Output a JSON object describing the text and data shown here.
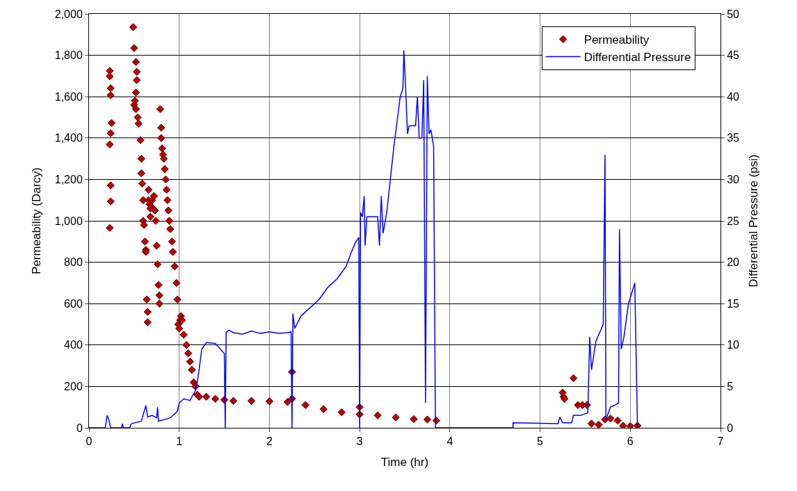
{
  "chart_data": {
    "type": "scatter",
    "xlabel": "Time (hr)",
    "ylabel": "Permeability (Darcy)",
    "y2label": "Differential Pressure (psi)",
    "xlim": [
      0,
      7
    ],
    "xticks": [
      0,
      1,
      2,
      3,
      4,
      5,
      6,
      7
    ],
    "ylim": [
      0,
      2000
    ],
    "yticks": [
      0,
      200,
      400,
      600,
      800,
      {
        "value": 1000,
        "label": "1,000"
      },
      {
        "value": 1200,
        "label": "1,200"
      },
      {
        "value": 1400,
        "label": "1,400"
      },
      {
        "value": 1600,
        "label": "1,600"
      },
      {
        "value": 1800,
        "label": "1,800"
      },
      {
        "value": 2000,
        "label": "2,000"
      }
    ],
    "y2lim": [
      0,
      50
    ],
    "y2ticks": [
      0,
      5,
      10,
      15,
      20,
      25,
      30,
      35,
      40,
      45,
      50
    ],
    "grid": true,
    "legend": "top right",
    "series": [
      {
        "name": "Permeability",
        "marker": "diamond",
        "color": "#c00000",
        "x": [
          0.23,
          0.23,
          0.24,
          0.24,
          0.25,
          0.24,
          0.23,
          0.24,
          0.24,
          0.23,
          0.49,
          0.5,
          0.52,
          0.53,
          0.53,
          0.52,
          0.51,
          0.5,
          0.52,
          0.54,
          0.55,
          0.57,
          0.58,
          0.58,
          0.59,
          0.6,
          0.6,
          0.61,
          0.62,
          0.63,
          0.63,
          0.64,
          0.65,
          0.65,
          0.66,
          0.66,
          0.67,
          0.68,
          0.68,
          0.7,
          0.71,
          0.72,
          0.73,
          0.74,
          0.75,
          0.76,
          0.77,
          0.78,
          0.78,
          0.79,
          0.8,
          0.8,
          0.81,
          0.82,
          0.83,
          0.84,
          0.85,
          0.86,
          0.87,
          0.88,
          0.89,
          0.9,
          0.92,
          0.93,
          0.95,
          0.97,
          0.98,
          0.99,
          1.0,
          1.01,
          1.02,
          1.03,
          1.05,
          1.08,
          1.1,
          1.12,
          1.14,
          1.16,
          1.18,
          1.2,
          1.22,
          1.3,
          1.4,
          1.5,
          1.6,
          1.8,
          2.0,
          2.2,
          2.25,
          2.25,
          2.4,
          2.6,
          2.8,
          3.0,
          3.0,
          3.2,
          3.4,
          3.6,
          3.75,
          3.85,
          5.25,
          5.26,
          5.27,
          5.37,
          5.42,
          5.47,
          5.52,
          5.57,
          5.65,
          5.72,
          5.78,
          5.86,
          5.92,
          6.0,
          6.08
        ],
        "values": [
          1725,
          1698,
          1641,
          1607,
          1473,
          1423,
          1369,
          1171,
          1094,
          966,
          1936,
          1835,
          1768,
          1720,
          1680,
          1620,
          1580,
          1560,
          1540,
          1500,
          1470,
          1390,
          1300,
          1230,
          1180,
          1100,
          1000,
          980,
          900,
          860,
          850,
          620,
          560,
          510,
          1150,
          1100,
          1080,
          1060,
          1020,
          1100,
          1060,
          1120,
          1050,
          1000,
          880,
          790,
          690,
          640,
          600,
          1540,
          1450,
          1400,
          1350,
          1320,
          1300,
          1250,
          1200,
          1150,
          1100,
          1050,
          1000,
          960,
          900,
          850,
          780,
          700,
          620,
          500,
          480,
          520,
          540,
          520,
          450,
          400,
          360,
          320,
          280,
          220,
          200,
          160,
          150,
          150,
          140,
          135,
          130,
          130,
          128,
          125,
          270,
          140,
          110,
          90,
          75,
          100,
          65,
          60,
          50,
          42,
          40,
          35,
          170,
          150,
          140,
          240,
          110,
          110,
          110,
          20,
          15,
          40,
          45,
          35,
          10,
          8,
          10
        ]
      },
      {
        "name": "Differential Pressure",
        "type": "line",
        "axis": "y2",
        "color": "#0000ff",
        "x": [
          0.0,
          0.18,
          0.2,
          0.22,
          0.24,
          0.36,
          0.37,
          0.38,
          0.45,
          0.47,
          0.58,
          0.63,
          0.65,
          0.7,
          0.75,
          0.76,
          0.77,
          0.9,
          0.98,
          1.0,
          1.05,
          1.12,
          1.18,
          1.2,
          1.22,
          1.25,
          1.3,
          1.4,
          1.48,
          1.5,
          1.51,
          1.52,
          1.55,
          1.6,
          1.7,
          1.8,
          1.9,
          2.0,
          2.1,
          2.2,
          2.24,
          2.25,
          2.26,
          2.28,
          2.35,
          2.45,
          2.55,
          2.65,
          2.75,
          2.85,
          2.9,
          2.95,
          2.99,
          3.0,
          3.01,
          3.03,
          3.05,
          3.06,
          3.08,
          3.2,
          3.22,
          3.24,
          3.26,
          3.3,
          3.38,
          3.45,
          3.48,
          3.49,
          3.51,
          3.53,
          3.55,
          3.62,
          3.64,
          3.66,
          3.69,
          3.71,
          3.73,
          3.75,
          3.77,
          3.79,
          3.82,
          3.84,
          4.7,
          4.7,
          5.2,
          5.22,
          5.25,
          5.35,
          5.37,
          5.45,
          5.53,
          5.55,
          5.57,
          5.62,
          5.68,
          5.7,
          5.72,
          5.73,
          5.78,
          5.84,
          5.87,
          5.88,
          5.9,
          5.93,
          5.98,
          6.05,
          6.08,
          6.1
        ],
        "values": [
          0,
          0,
          1.5,
          1.0,
          0,
          0,
          0.5,
          0,
          0,
          0.5,
          0.8,
          2.7,
          1.3,
          1.5,
          1.2,
          2.5,
          0.8,
          1.2,
          2.0,
          3.0,
          3.5,
          3.3,
          4.5,
          5.5,
          7,
          9.5,
          10.3,
          10.2,
          9.2,
          9.0,
          0,
          11.5,
          11.8,
          11.5,
          11.3,
          11.7,
          11.4,
          11.6,
          11.4,
          11.5,
          11.6,
          0,
          13.8,
          12,
          13.5,
          14.5,
          15.5,
          17,
          18,
          19.5,
          21,
          22.3,
          23,
          0,
          26,
          25.5,
          28,
          22,
          25.5,
          25.5,
          22,
          28,
          23.5,
          26,
          34,
          40,
          41,
          45.6,
          41,
          35.5,
          36.5,
          36.5,
          40,
          35,
          35,
          42,
          3,
          42.5,
          35.5,
          36,
          34,
          0,
          0,
          0.6,
          0.5,
          1.3,
          0.6,
          0.6,
          1.5,
          1.5,
          1.8,
          11,
          7,
          10.5,
          12,
          12.5,
          33,
          1,
          2.5,
          2.8,
          3,
          24,
          9.5,
          11,
          15,
          17.5,
          0,
          0
        ]
      }
    ]
  }
}
